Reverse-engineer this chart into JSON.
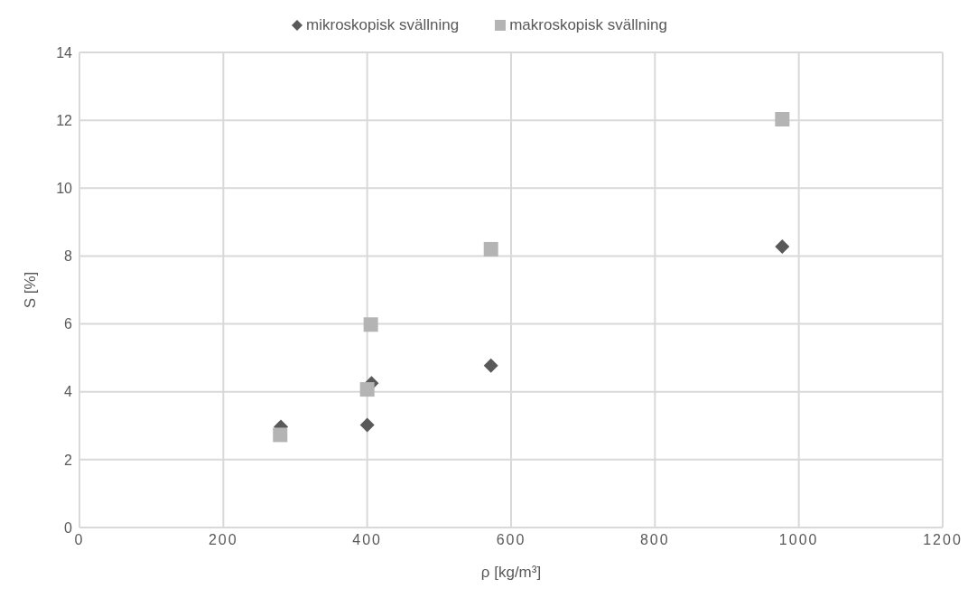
{
  "chart_data": {
    "type": "scatter",
    "xlabel": "ρ [kg/m³]",
    "ylabel": "S [%]",
    "xlim": [
      0,
      1200
    ],
    "xticks": [
      0,
      200,
      400,
      600,
      800,
      1000,
      1200
    ],
    "ylim": [
      0,
      14
    ],
    "yticks": [
      0,
      2,
      4,
      6,
      8,
      10,
      12,
      14
    ],
    "grid": true,
    "legend": "top",
    "series": [
      {
        "name": "mikroskopisk svällning",
        "color": "#595959",
        "marker": "diamond",
        "x": [
          280,
          400,
          406,
          572,
          977
        ],
        "values": [
          2.97,
          3.02,
          4.25,
          4.77,
          8.28
        ]
      },
      {
        "name": "makroskopisk svällning",
        "color": "#b4b4b4",
        "marker": "square",
        "x": [
          279,
          400,
          405,
          572,
          977
        ],
        "values": [
          2.73,
          4.07,
          5.98,
          8.2,
          12.03
        ]
      }
    ]
  }
}
